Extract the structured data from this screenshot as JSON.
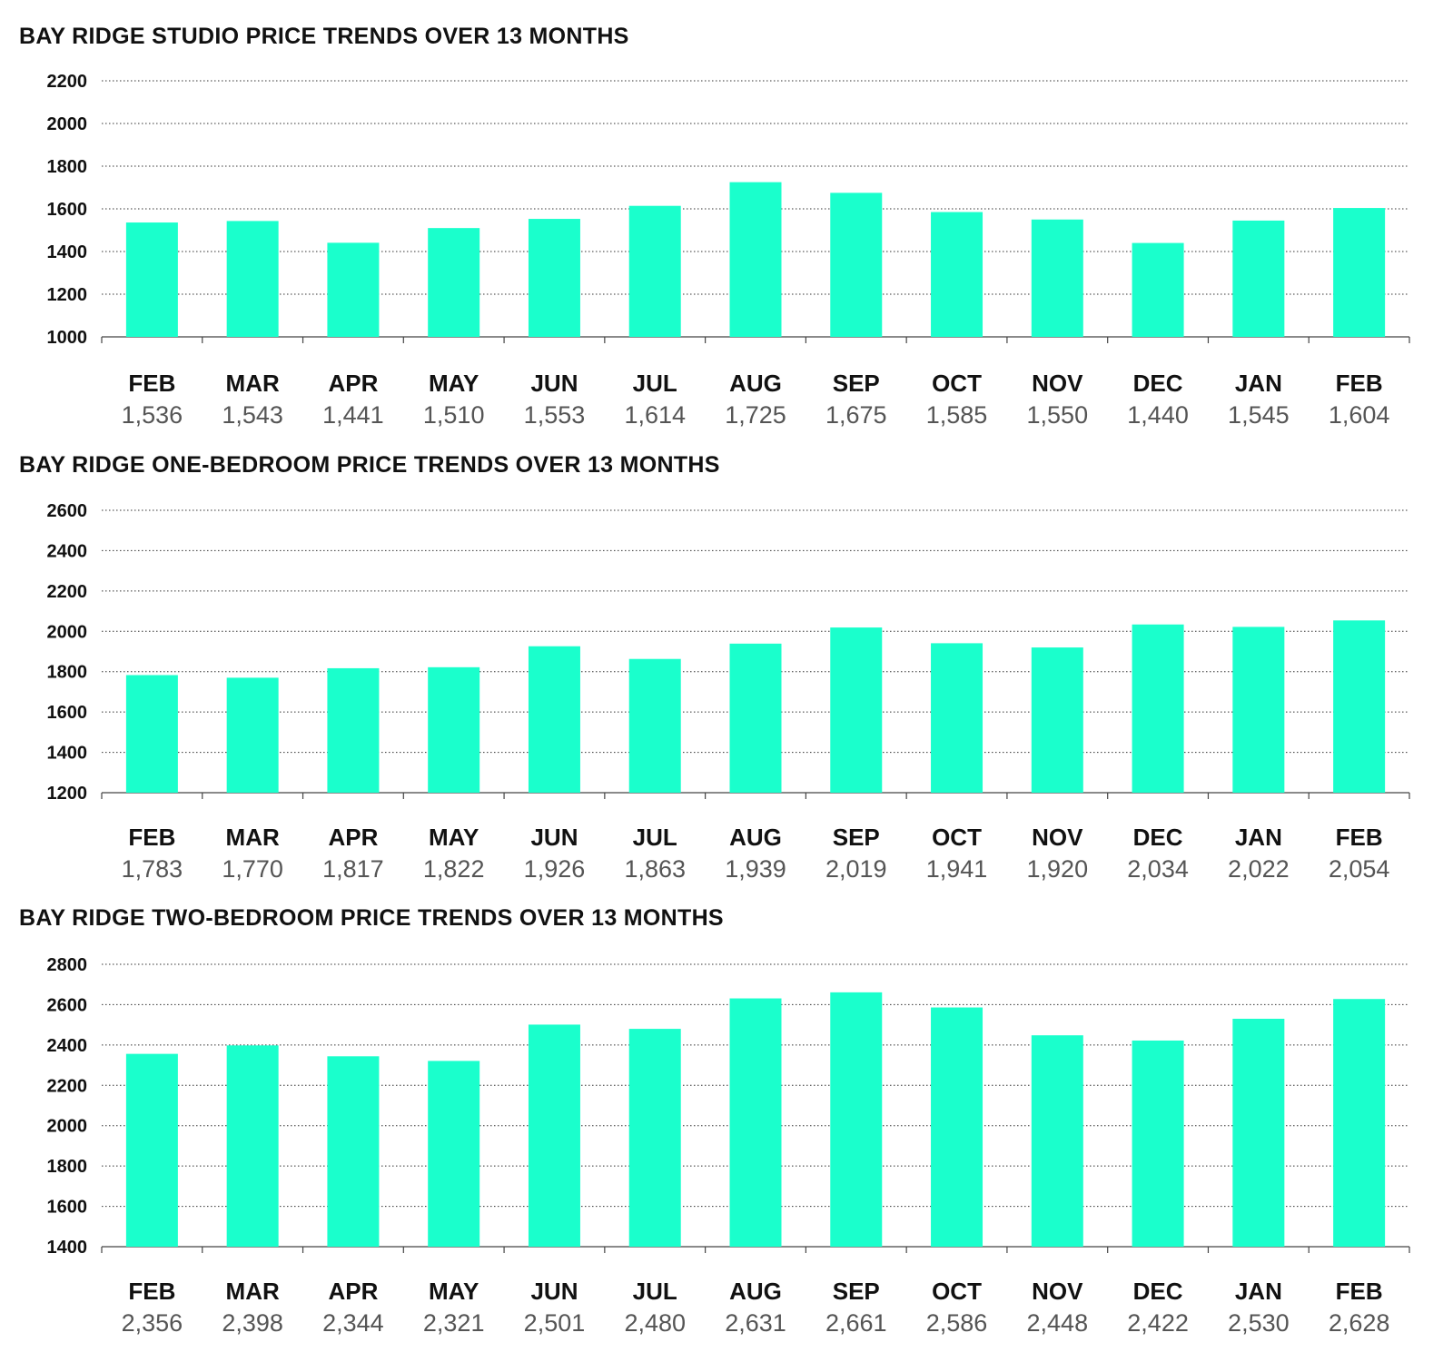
{
  "chart_data": [
    {
      "type": "bar",
      "title": "BAY RIDGE STUDIO PRICE TRENDS OVER 13 MONTHS",
      "xlabel": "",
      "ylabel": "",
      "ylim": [
        1000,
        2200
      ],
      "yticks": [
        2200,
        2000,
        1800,
        1600,
        1400,
        1200,
        1000
      ],
      "categories": [
        "FEB",
        "MAR",
        "APR",
        "MAY",
        "JUN",
        "JUL",
        "AUG",
        "SEP",
        "OCT",
        "NOV",
        "DEC",
        "JAN",
        "FEB"
      ],
      "values": [
        1536,
        1543,
        1441,
        1510,
        1553,
        1614,
        1725,
        1675,
        1585,
        1550,
        1440,
        1545,
        1604
      ],
      "value_labels": [
        "1,536",
        "1,543",
        "1,441",
        "1,510",
        "1,553",
        "1,614",
        "1,725",
        "1,675",
        "1,585",
        "1,550",
        "1,440",
        "1,545",
        "1,604"
      ],
      "grid": true,
      "bar_color": "#1affcc"
    },
    {
      "type": "bar",
      "title": "BAY RIDGE ONE-BEDROOM PRICE TRENDS OVER 13 MONTHS",
      "xlabel": "",
      "ylabel": "",
      "ylim": [
        1200,
        2600
      ],
      "yticks": [
        2600,
        2400,
        2200,
        2000,
        1800,
        1600,
        1400,
        1200
      ],
      "categories": [
        "FEB",
        "MAR",
        "APR",
        "MAY",
        "JUN",
        "JUL",
        "AUG",
        "SEP",
        "OCT",
        "NOV",
        "DEC",
        "JAN",
        "FEB"
      ],
      "values": [
        1783,
        1770,
        1817,
        1822,
        1926,
        1863,
        1939,
        2019,
        1941,
        1920,
        2034,
        2022,
        2054
      ],
      "value_labels": [
        "1,783",
        "1,770",
        "1,817",
        "1,822",
        "1,926",
        "1,863",
        "1,939",
        "2,019",
        "1,941",
        "1,920",
        "2,034",
        "2,022",
        "2,054"
      ],
      "grid": true,
      "bar_color": "#1affcc"
    },
    {
      "type": "bar",
      "title": "BAY RIDGE TWO-BEDROOM PRICE TRENDS OVER 13 MONTHS",
      "xlabel": "",
      "ylabel": "",
      "ylim": [
        1400,
        2800
      ],
      "yticks": [
        2800,
        2600,
        2400,
        2200,
        2000,
        1800,
        1600,
        1400
      ],
      "categories": [
        "FEB",
        "MAR",
        "APR",
        "MAY",
        "JUN",
        "JUL",
        "AUG",
        "SEP",
        "OCT",
        "NOV",
        "DEC",
        "JAN",
        "FEB"
      ],
      "values": [
        2356,
        2398,
        2344,
        2321,
        2501,
        2480,
        2631,
        2661,
        2586,
        2448,
        2422,
        2530,
        2628
      ],
      "value_labels": [
        "2,356",
        "2,398",
        "2,344",
        "2,321",
        "2,501",
        "2,480",
        "2,631",
        "2,661",
        "2,586",
        "2,448",
        "2,422",
        "2,530",
        "2,628"
      ],
      "grid": true,
      "bar_color": "#1affcc"
    }
  ]
}
